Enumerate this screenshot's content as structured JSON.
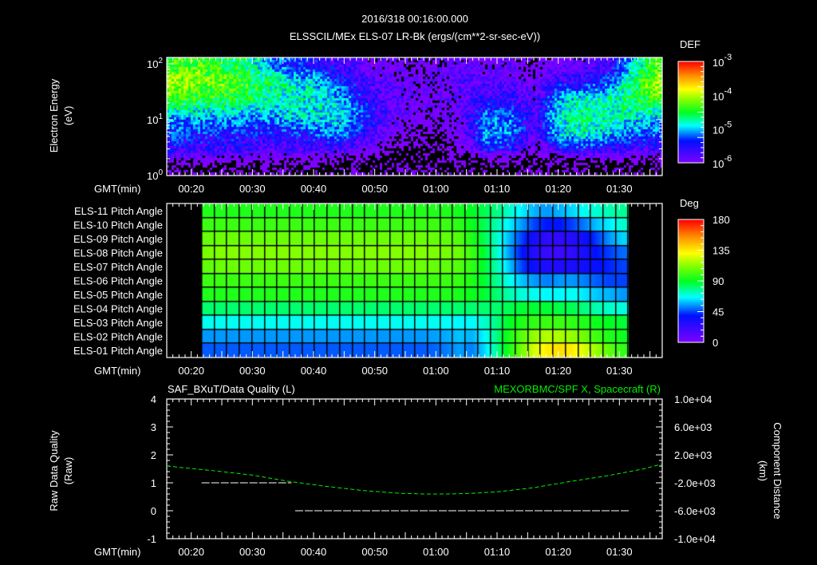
{
  "header": {
    "datetime": "2016/318 00:16:00.000",
    "title": "ELSSCIL/MEx ELS-07 LR-Bk  (ergs/(cm**2-sr-sec-eV))"
  },
  "axis_common": {
    "time_label": "GMT(min)",
    "time_range_min": [
      16,
      97
    ],
    "time_ticks": [
      "00:20",
      "00:30",
      "00:40",
      "00:50",
      "01:00",
      "01:10",
      "01:20",
      "01:30"
    ],
    "time_tick_values_min": [
      20,
      30,
      40,
      50,
      60,
      70,
      80,
      90
    ]
  },
  "colors": {
    "white": "#ffffff",
    "green_series": "#00ee00",
    "background": "#000000"
  },
  "chart_data": [
    {
      "type": "heatmap",
      "name": "spectrogram",
      "ylabel": "Electron Energy",
      "ylabel_units": "(eV)",
      "yscale": "log",
      "ylim_eV": [
        1,
        130
      ],
      "y_ticks": [
        {
          "base": "10",
          "exp": "2",
          "value": 100
        },
        {
          "base": "10",
          "exp": "1",
          "value": 10
        },
        {
          "base": "10",
          "exp": "0",
          "value": 1
        }
      ],
      "colorbar": {
        "label": "DEF",
        "scale": "log",
        "range": [
          1e-06,
          0.001
        ],
        "ticks": [
          {
            "base": "10",
            "exp": "-3"
          },
          {
            "base": "10",
            "exp": "-4"
          },
          {
            "base": "10",
            "exp": "-5"
          },
          {
            "base": "10",
            "exp": "-6"
          }
        ]
      },
      "time_bins_min": [
        16,
        20,
        24,
        28,
        32,
        36,
        40,
        44,
        48,
        52,
        56,
        60,
        64,
        68,
        72,
        76,
        80,
        84,
        88,
        92,
        96
      ],
      "energy_bins_eV": [
        1.5,
        3,
        6,
        12,
        25,
        50,
        100
      ],
      "log10_def": [
        [
          -6.5,
          -5.6,
          -5.3,
          -5.0,
          -4.3,
          -4.1,
          -4.4
        ],
        [
          -6.5,
          -5.6,
          -5.3,
          -5.0,
          -4.4,
          -4.1,
          -4.3
        ],
        [
          -6.5,
          -5.7,
          -5.4,
          -5.0,
          -4.5,
          -4.2,
          -4.5
        ],
        [
          -6.5,
          -5.7,
          -5.4,
          -5.1,
          -4.5,
          -4.3,
          -4.6
        ],
        [
          -6.5,
          -5.8,
          -5.5,
          -5.1,
          -4.7,
          -4.6,
          -5.0
        ],
        [
          -6.5,
          -5.8,
          -5.4,
          -4.9,
          -4.8,
          -4.8,
          -5.3
        ],
        [
          -6.5,
          -5.8,
          -5.3,
          -4.9,
          -4.8,
          -5.0,
          -5.5
        ],
        [
          -6.6,
          -5.8,
          -5.1,
          -4.9,
          -5.0,
          -5.3,
          -5.7
        ],
        [
          -6.7,
          -6.0,
          -5.5,
          -5.3,
          -5.5,
          -5.7,
          -5.9
        ],
        [
          -7.0,
          -6.3,
          -6.0,
          -5.8,
          -5.8,
          -5.9,
          -6.1
        ],
        [
          -7.0,
          -6.4,
          -6.2,
          -6.0,
          -6.0,
          -6.0,
          -6.1
        ],
        [
          -7.0,
          -6.5,
          -6.3,
          -6.1,
          -6.0,
          -6.0,
          -6.0
        ],
        [
          -7.0,
          -6.2,
          -6.0,
          -5.9,
          -5.9,
          -5.8,
          -5.9
        ],
        [
          -6.8,
          -5.5,
          -5.0,
          -5.2,
          -5.6,
          -5.8,
          -6.0
        ],
        [
          -6.8,
          -5.6,
          -5.1,
          -5.2,
          -5.6,
          -5.9,
          -6.0
        ],
        [
          -7.0,
          -6.2,
          -5.8,
          -5.8,
          -5.9,
          -6.0,
          -6.1
        ],
        [
          -6.8,
          -5.6,
          -4.9,
          -4.8,
          -5.0,
          -5.6,
          -6.0
        ],
        [
          -6.8,
          -5.5,
          -4.8,
          -4.7,
          -4.8,
          -5.5,
          -5.9
        ],
        [
          -6.8,
          -5.5,
          -4.9,
          -4.7,
          -4.8,
          -5.3,
          -5.7
        ],
        [
          -6.8,
          -5.7,
          -5.2,
          -4.9,
          -4.6,
          -4.6,
          -5.0
        ],
        [
          -6.7,
          -5.7,
          -5.2,
          -4.9,
          -4.3,
          -4.0,
          -4.3
        ]
      ]
    },
    {
      "type": "heatmap",
      "name": "pitch-angle",
      "colorbar": {
        "label": "Deg",
        "range": [
          0,
          180
        ],
        "ticks": [
          "180",
          "135",
          "90",
          "45",
          "0"
        ]
      },
      "time_start_min": 21.75,
      "time_step_min": 2.05,
      "rows": [
        {
          "label": "ELS-11 Pitch Angle",
          "values": [
            95,
            95,
            95,
            95,
            95,
            95,
            95,
            95,
            95,
            95,
            95,
            95,
            95,
            95,
            95,
            95,
            95,
            95,
            95,
            95,
            93,
            90,
            85,
            80,
            72,
            65,
            58,
            55,
            58,
            62,
            68,
            72,
            75,
            78
          ]
        },
        {
          "label": "ELS-10 Pitch Angle",
          "values": [
            100,
            100,
            100,
            100,
            100,
            100,
            100,
            100,
            100,
            100,
            100,
            100,
            100,
            100,
            100,
            100,
            100,
            100,
            100,
            100,
            97,
            92,
            85,
            75,
            65,
            55,
            45,
            40,
            40,
            45,
            52,
            60,
            65,
            72
          ]
        },
        {
          "label": "ELS-09 Pitch Angle",
          "values": [
            107,
            108,
            108,
            108,
            108,
            108,
            108,
            108,
            108,
            108,
            108,
            108,
            108,
            108,
            108,
            108,
            108,
            108,
            107,
            106,
            104,
            95,
            85,
            72,
            58,
            45,
            32,
            25,
            25,
            28,
            35,
            45,
            55,
            62
          ]
        },
        {
          "label": "ELS-08 Pitch Angle",
          "values": [
            110,
            112,
            112,
            112,
            112,
            112,
            112,
            112,
            112,
            112,
            112,
            112,
            112,
            112,
            112,
            112,
            112,
            112,
            111,
            110,
            108,
            100,
            88,
            72,
            55,
            40,
            28,
            22,
            20,
            25,
            32,
            40,
            45,
            50
          ]
        },
        {
          "label": "ELS-07 Pitch Angle",
          "values": [
            106,
            108,
            108,
            108,
            108,
            108,
            108,
            108,
            108,
            108,
            108,
            108,
            108,
            108,
            108,
            108,
            108,
            108,
            107,
            106,
            104,
            98,
            88,
            75,
            60,
            45,
            35,
            30,
            30,
            32,
            35,
            38,
            42,
            45
          ]
        },
        {
          "label": "ELS-06 Pitch Angle",
          "values": [
            100,
            100,
            100,
            100,
            100,
            100,
            100,
            100,
            100,
            100,
            100,
            100,
            100,
            100,
            100,
            100,
            100,
            100,
            100,
            100,
            99,
            95,
            88,
            78,
            68,
            60,
            55,
            52,
            55,
            55,
            52,
            48,
            45,
            45
          ]
        },
        {
          "label": "ELS-05 Pitch Angle",
          "values": [
            95,
            95,
            95,
            95,
            95,
            95,
            95,
            95,
            95,
            95,
            95,
            95,
            95,
            95,
            95,
            95,
            95,
            95,
            95,
            95,
            94,
            92,
            88,
            82,
            75,
            70,
            68,
            66,
            66,
            68,
            64,
            60,
            58,
            55
          ]
        },
        {
          "label": "ELS-04 Pitch Angle",
          "values": [
            82,
            82,
            82,
            82,
            82,
            82,
            82,
            82,
            82,
            82,
            82,
            82,
            82,
            82,
            82,
            82,
            82,
            82,
            82,
            82,
            82,
            82,
            82,
            82,
            85,
            88,
            88,
            88,
            86,
            85,
            80,
            75,
            72,
            70
          ]
        },
        {
          "label": "ELS-03 Pitch Angle",
          "values": [
            68,
            68,
            68,
            68,
            68,
            68,
            68,
            68,
            68,
            68,
            68,
            68,
            68,
            68,
            68,
            68,
            68,
            68,
            68,
            67,
            66,
            66,
            72,
            80,
            90,
            95,
            98,
            100,
            100,
            98,
            95,
            92,
            90,
            88
          ]
        },
        {
          "label": "ELS-02 Pitch Angle",
          "values": [
            55,
            55,
            55,
            55,
            55,
            55,
            55,
            55,
            55,
            55,
            55,
            55,
            55,
            55,
            55,
            55,
            55,
            55,
            56,
            57,
            60,
            58,
            66,
            80,
            95,
            105,
            115,
            120,
            118,
            115,
            108,
            100,
            95,
            92
          ]
        },
        {
          "label": "ELS-01 Pitch Angle",
          "values": [
            48,
            48,
            48,
            48,
            48,
            48,
            48,
            48,
            48,
            48,
            48,
            48,
            48,
            48,
            48,
            48,
            48,
            48,
            49,
            52,
            56,
            52,
            62,
            78,
            95,
            110,
            125,
            135,
            138,
            135,
            125,
            115,
            105,
            98
          ]
        }
      ]
    },
    {
      "type": "line",
      "name": "quality-and-position",
      "title_left": "SAF_BXuT/Data Quality (L)",
      "title_right": "MEXORBMC/SPF X, Spacecraft (R)",
      "ylabel_left": "Raw Data Quality",
      "ylabel_left_units": "(Raw)",
      "ylabel_right": "Component Distance",
      "ylabel_right_units": "(km)",
      "ylim_left": [
        -1,
        4
      ],
      "yticks_left": [
        "4",
        "3",
        "2",
        "1",
        "0",
        "-1"
      ],
      "ylim_right": [
        -10000,
        10000
      ],
      "yticks_right": [
        "1.0e+04",
        "6.0e+03",
        "2.0e+03",
        "-2.0e+03",
        "-6.0e+03",
        "-1.0e+04"
      ],
      "series": [
        {
          "name": "Data Quality",
          "axis": "left",
          "color": "#ffffff",
          "segments": [
            {
              "x_min": [
                21.7,
                36.4
              ],
              "y": 1
            },
            {
              "x_min": [
                37.0,
                91.6
              ],
              "y": 0
            }
          ]
        },
        {
          "name": "SPF X",
          "axis": "right",
          "color": "#00ee00",
          "x_min": [
            16,
            24,
            30,
            36,
            42,
            48,
            54,
            58,
            62,
            66,
            70,
            76,
            82,
            88,
            94,
            97
          ],
          "y_km": [
            400,
            -300,
            -900,
            -1800,
            -2500,
            -3100,
            -3500,
            -3600,
            -3600,
            -3500,
            -3300,
            -2700,
            -1800,
            -1000,
            0,
            700
          ]
        }
      ]
    }
  ]
}
